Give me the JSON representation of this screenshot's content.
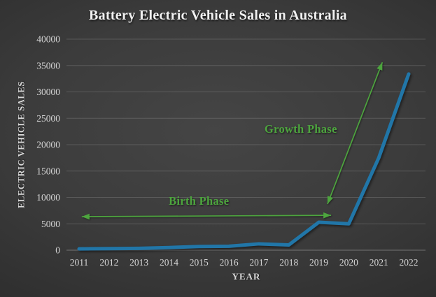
{
  "chart_data": {
    "type": "line",
    "title": "Battery Electric Vehicle Sales in Australia",
    "xlabel": "YEAR",
    "ylabel": "ELECTRIC VEHICLE SALES",
    "categories": [
      "2011",
      "2012",
      "2013",
      "2014",
      "2015",
      "2016",
      "2017",
      "2018",
      "2019",
      "2020",
      "2021",
      "2022"
    ],
    "series": [
      {
        "name": "Battery electric vehicle sales",
        "color": "#2176a8",
        "values": [
          250,
          300,
          350,
          500,
          700,
          750,
          1200,
          1000,
          5300,
          5000,
          17500,
          33400
        ]
      }
    ],
    "ylim": [
      0,
      40000
    ],
    "ytick_step": 5000,
    "yticks": [
      0,
      5000,
      10000,
      15000,
      20000,
      25000,
      30000,
      35000,
      40000
    ],
    "grid": true,
    "legend_position": "none",
    "annotations": [
      {
        "label": "Birth Phase",
        "type": "double-arrow",
        "color": "#4da53e",
        "from": {
          "x": 0.09,
          "y": 6350
        },
        "to": {
          "x": 8.41,
          "y": 6610
        },
        "label_at": {
          "x": 4.0,
          "y": 9300
        }
      },
      {
        "label": "Growth Phase",
        "type": "double-arrow",
        "color": "#4da53e",
        "from": {
          "x": 8.29,
          "y": 8750
        },
        "to": {
          "x": 10.12,
          "y": 35600
        },
        "label_at": {
          "x": 7.4,
          "y": 22900
        }
      }
    ]
  },
  "colors": {
    "background_center": "#454545",
    "background_edge": "#191919",
    "title_text": "#f1f1f1",
    "axis_text": "#d6d6d6",
    "gridline": "rgba(255,255,255,0.15)",
    "zero_line": "rgba(255,255,255,0.30)",
    "line": "#2176a8",
    "annotation": "#4da53e"
  }
}
